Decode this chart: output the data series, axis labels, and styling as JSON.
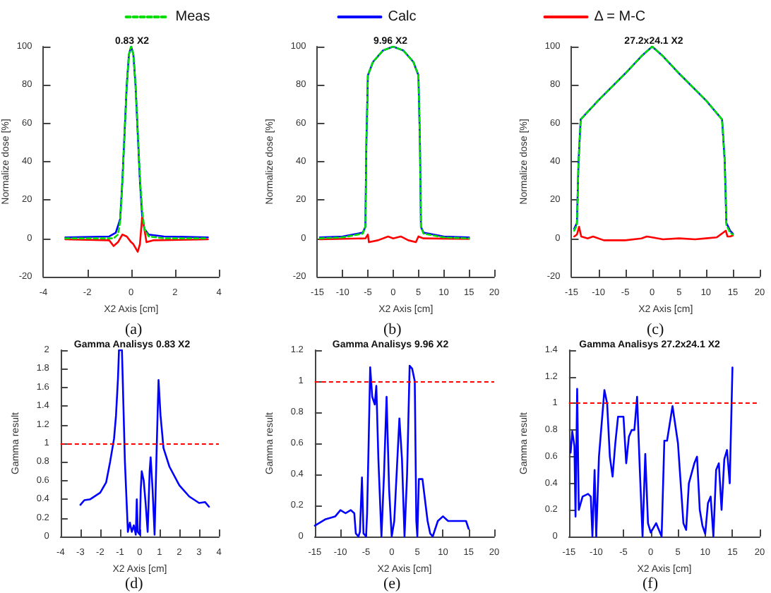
{
  "chart_data": [
    {
      "type": "line",
      "title": "0.83 X2",
      "xlabel": "X2 Axis [cm]",
      "ylabel": "Normalize dose [%]",
      "annotations": [
        "(a)"
      ],
      "legend": "top",
      "grid": false,
      "marker": "none",
      "xlim": [
        -4,
        4
      ],
      "xticks": [
        -4,
        -2,
        0,
        2,
        4
      ],
      "ylim": [
        -20,
        100
      ],
      "yticks": [
        -20,
        0,
        20,
        40,
        60,
        80,
        100
      ],
      "series": [
        {
          "name": "Meas",
          "color": "#00e000",
          "line_style": "dashed",
          "x": [
            -3,
            -1,
            -0.8,
            -0.6,
            -0.5,
            -0.4,
            -0.3,
            -0.2,
            -0.1,
            0,
            0.1,
            0.2,
            0.3,
            0.4,
            0.5,
            0.6,
            0.8,
            1.5,
            3.5
          ],
          "values": [
            0,
            0,
            0,
            2,
            9,
            29,
            55,
            80,
            96,
            100,
            96,
            80,
            56,
            32,
            15,
            5,
            1,
            0,
            0
          ]
        },
        {
          "name": "Calc",
          "color": "#0000ff",
          "line_style": "solid",
          "x": [
            -3,
            -1,
            -0.7,
            -0.5,
            -0.4,
            -0.3,
            -0.2,
            -0.1,
            0,
            0.1,
            0.2,
            0.3,
            0.4,
            0.5,
            0.6,
            0.8,
            1.5,
            3.5
          ],
          "values": [
            0.5,
            1,
            3,
            10,
            30,
            55,
            80,
            96,
            100,
            96,
            80,
            55,
            30,
            12,
            5,
            2,
            1,
            0.5
          ]
        },
        {
          "name": "Δ = M-C",
          "color": "#ff0000",
          "line_style": "solid",
          "x": [
            -3,
            -1,
            -0.8,
            -0.6,
            -0.4,
            -0.2,
            0,
            0.1,
            0.3,
            0.4,
            0.5,
            0.6,
            0.7,
            1,
            3.5
          ],
          "values": [
            -0.5,
            -1,
            -4,
            -2,
            2,
            1,
            -2,
            -3,
            -7,
            -3,
            11,
            5,
            -2,
            -1,
            -0.5
          ]
        }
      ]
    },
    {
      "type": "line",
      "title": "9.96 X2",
      "xlabel": "X2 Axis [cm]",
      "ylabel": "Normalize dose [%]",
      "annotations": [
        "(b)"
      ],
      "grid": false,
      "marker": "none",
      "xlim": [
        -15,
        20
      ],
      "xticks": [
        -15,
        -10,
        -5,
        0,
        5,
        10,
        15,
        20
      ],
      "ylim": [
        -20,
        100
      ],
      "yticks": [
        -20,
        0,
        20,
        40,
        60,
        80,
        100
      ],
      "series": [
        {
          "color": "#00e000",
          "line_style": "dashed",
          "x": [
            -14.5,
            -10,
            -6,
            -5.5,
            -5.3,
            -5,
            -4,
            -2,
            0,
            2,
            4,
            5,
            5.3,
            5.5,
            6,
            10,
            15
          ],
          "values": [
            0,
            0.5,
            2.5,
            6,
            50,
            85,
            92,
            98,
            100,
            98,
            92,
            85,
            50,
            6,
            2.5,
            0.5,
            0
          ]
        },
        {
          "color": "#0000ff",
          "line_style": "solid",
          "x": [
            -14.5,
            -10,
            -6,
            -5.5,
            -5.3,
            -5,
            -4,
            -2,
            0,
            2,
            4,
            5,
            5.3,
            5.5,
            6,
            10,
            15
          ],
          "values": [
            0.5,
            1,
            3,
            6,
            50,
            85,
            92,
            98,
            100,
            98,
            92,
            85,
            50,
            6,
            3,
            1,
            0.5
          ]
        },
        {
          "color": "#ff0000",
          "line_style": "solid",
          "x": [
            -14.5,
            -5.5,
            -5,
            -4.8,
            -3,
            -1,
            0,
            1.5,
            3,
            4.5,
            5,
            6,
            15
          ],
          "values": [
            -0.5,
            0,
            2,
            -2,
            -1,
            1,
            0,
            1,
            -1,
            -2,
            1,
            0,
            -0.3
          ]
        }
      ]
    },
    {
      "type": "line",
      "title": "27.2x24.1 X2",
      "xlabel": "X2 Axis [cm]",
      "ylabel": "Normalize dose [%]",
      "annotations": [
        "(c)"
      ],
      "grid": false,
      "marker": "none",
      "xlim": [
        -15,
        20
      ],
      "xticks": [
        -15,
        -10,
        -5,
        0,
        5,
        10,
        15,
        20
      ],
      "ylim": [
        -20,
        100
      ],
      "yticks": [
        -20,
        0,
        20,
        40,
        60,
        80,
        100
      ],
      "series": [
        {
          "color": "#00e000",
          "line_style": "dashed",
          "x": [
            -14.5,
            -14,
            -13.7,
            -13.3,
            -10,
            -5,
            -2,
            0,
            2,
            5,
            10,
            13,
            13.5,
            13.8,
            14.5,
            15
          ],
          "values": [
            4,
            7,
            40,
            62,
            72,
            86,
            95,
            100,
            95,
            86,
            72,
            62,
            40,
            7,
            3,
            2
          ]
        },
        {
          "color": "#0000ff",
          "line_style": "solid",
          "x": [
            -14.5,
            -14,
            -13.7,
            -13.3,
            -10,
            -5,
            -2,
            0,
            2,
            5,
            10,
            13,
            13.5,
            13.8,
            14.5,
            15
          ],
          "values": [
            5,
            8,
            40,
            62,
            72,
            86,
            95,
            100,
            95,
            86,
            72,
            62,
            40,
            8,
            4,
            2.5
          ]
        },
        {
          "color": "#ff0000",
          "line_style": "solid",
          "x": [
            -14.5,
            -14,
            -13.6,
            -13.2,
            -12,
            -11,
            -9,
            -5,
            -2,
            -1,
            0,
            2,
            5,
            8,
            10,
            12,
            13.7,
            14,
            14.5,
            15
          ],
          "values": [
            1,
            2,
            6,
            1,
            0,
            1,
            -1,
            -1,
            0,
            1,
            0.5,
            -0.5,
            0,
            -0.5,
            0,
            0.5,
            4,
            1,
            1,
            1.5
          ]
        }
      ]
    },
    {
      "type": "line",
      "title": "Gamma Analisys 0.83 X2",
      "xlabel": "X2 Axis [cm]",
      "ylabel": "Gamma result",
      "annotations": [
        "(d)"
      ],
      "grid": false,
      "marker": "none",
      "xlim": [
        -4,
        4
      ],
      "xticks": [
        -4,
        -3,
        -2,
        -1,
        0,
        1,
        2,
        3,
        4
      ],
      "ylim": [
        0,
        2
      ],
      "yticks": [
        0,
        0.2,
        0.4,
        0.6,
        0.8,
        1,
        1.2,
        1.4,
        1.6,
        1.8,
        2
      ],
      "ref_lines": [
        {
          "axis": "y",
          "value": 1,
          "color": "#ff0000",
          "line_style": "dashed"
        }
      ],
      "series": [
        {
          "color": "#0000ff",
          "x": [
            -3,
            -2.8,
            -2.5,
            -2,
            -1.7,
            -1.5,
            -1.3,
            -1.2,
            -1.1,
            -1.05,
            -0.9,
            -0.85,
            -0.75,
            -0.6,
            -0.5,
            -0.4,
            -0.3,
            -0.2,
            -0.15,
            -0.1,
            0,
            0.05,
            0.1,
            0.2,
            0.3,
            0.4,
            0.5,
            0.55,
            0.65,
            0.75,
            0.85,
            0.95,
            1.05,
            1.2,
            1.5,
            2,
            2.5,
            3,
            3.3,
            3.5
          ],
          "values": [
            0.34,
            0.39,
            0.4,
            0.47,
            0.58,
            0.8,
            1.05,
            1.3,
            1.7,
            2,
            2,
            1.6,
            0.8,
            0.05,
            0.15,
            0.05,
            0.12,
            0.02,
            0.4,
            0.05,
            0.02,
            0.5,
            0.7,
            0.6,
            0.35,
            0.05,
            0.7,
            0.85,
            0.5,
            0.02,
            0.9,
            1.68,
            1.3,
            0.95,
            0.75,
            0.55,
            0.43,
            0.36,
            0.37,
            0.32
          ]
        }
      ]
    },
    {
      "type": "line",
      "title": "Gamma Analisys 9.96 X2",
      "xlabel": "X2 Axis [cm]",
      "ylabel": "Gamma result",
      "annotations": [
        "(e)"
      ],
      "grid": false,
      "marker": "none",
      "xlim": [
        -15,
        20
      ],
      "xticks": [
        -15,
        -10,
        -5,
        0,
        5,
        10,
        15,
        20
      ],
      "ylim": [
        0,
        1.2
      ],
      "yticks": [
        0,
        0.2,
        0.4,
        0.6,
        0.8,
        1,
        1.2
      ],
      "ref_lines": [
        {
          "axis": "y",
          "value": 1,
          "color": "#ff0000",
          "line_style": "dashed"
        }
      ],
      "series": [
        {
          "color": "#0000ff",
          "x": [
            -15,
            -13,
            -11,
            -10,
            -9,
            -8,
            -7.3,
            -7,
            -6.5,
            -6.2,
            -5.8,
            -5.5,
            -5,
            -4.8,
            -4.5,
            -4.2,
            -3.8,
            -3.3,
            -3,
            -2.6,
            -2,
            -1.5,
            -1,
            -0.5,
            0,
            0.5,
            1.5,
            2,
            2.5,
            3,
            3.5,
            4,
            4.5,
            4.8,
            5,
            5.3,
            6,
            7,
            7.5,
            8,
            9,
            10,
            11,
            13,
            14.5,
            15
          ],
          "values": [
            0.07,
            0.11,
            0.13,
            0.17,
            0.15,
            0.17,
            0.15,
            0.02,
            0,
            0.03,
            0.38,
            0.02,
            0,
            0.15,
            0.6,
            1.09,
            0.9,
            0.85,
            0.97,
            0.5,
            0,
            0.4,
            0.9,
            0.3,
            0,
            0.1,
            0.76,
            0.5,
            0,
            0.4,
            1.1,
            1.08,
            1,
            0.1,
            0,
            0.37,
            0.37,
            0.1,
            0.02,
            0,
            0.1,
            0.13,
            0.1,
            0.1,
            0.1,
            0.05
          ]
        }
      ]
    },
    {
      "type": "line",
      "title": "Gamma Analisys 27.2x24.1 X2",
      "xlabel": "X2 Axis [cm]",
      "ylabel": "Gamma result",
      "annotations": [
        "(f)"
      ],
      "grid": false,
      "marker": "none",
      "xlim": [
        -15,
        20
      ],
      "xticks": [
        -15,
        -10,
        -5,
        0,
        5,
        10,
        15,
        20
      ],
      "ylim": [
        0,
        1.4
      ],
      "yticks": [
        0,
        0.2,
        0.4,
        0.6,
        0.8,
        1,
        1.2,
        1.4
      ],
      "ref_lines": [
        {
          "axis": "y",
          "value": 1,
          "color": "#ff0000",
          "line_style": "dashed"
        }
      ],
      "series": [
        {
          "color": "#0000ff",
          "x": [
            -14.7,
            -14.4,
            -14,
            -13.8,
            -13.5,
            -13.2,
            -12.5,
            -11.5,
            -11,
            -10.7,
            -10.3,
            -10,
            -9.5,
            -9,
            -8.5,
            -8,
            -7.5,
            -7,
            -6.5,
            -6,
            -5,
            -4.5,
            -4,
            -3.5,
            -3,
            -2.5,
            -2,
            -1.5,
            -1,
            -0.5,
            0,
            1,
            1.5,
            2,
            2.5,
            3,
            4,
            5,
            6,
            6.5,
            7,
            8,
            8.5,
            9,
            9.5,
            10,
            10.5,
            11,
            11.5,
            12,
            12.5,
            13,
            13.5,
            14,
            14.5,
            15
          ],
          "values": [
            0.63,
            0.79,
            0.68,
            0.15,
            1.11,
            0.2,
            0.3,
            0.32,
            0.3,
            0,
            0.5,
            0,
            0.6,
            0.85,
            1.1,
            1,
            0.6,
            0.45,
            0.7,
            0.9,
            0.9,
            0.55,
            0.75,
            0.8,
            0.8,
            1.05,
            0.5,
            0,
            0.62,
            0.1,
            0.03,
            0.1,
            0.05,
            0,
            0.72,
            0.72,
            0.98,
            0.7,
            0.1,
            0.05,
            0.4,
            0.55,
            0.6,
            0.2,
            0.08,
            0.02,
            0.25,
            0.3,
            0,
            0.5,
            0.55,
            0.2,
            0.58,
            0.65,
            0.4,
            1.27
          ]
        }
      ]
    }
  ]
}
